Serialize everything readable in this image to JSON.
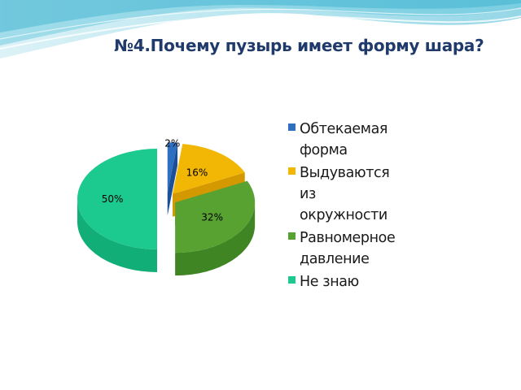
{
  "slide": {
    "title": "№4.Почему пузырь имеет форму шара?"
  },
  "chart_data": {
    "type": "pie",
    "three_d": true,
    "exploded": true,
    "title": "№4.Почему пузырь имеет форму шара?",
    "legend_position": "right",
    "categories": [
      "Обтекаемая форма",
      "Выдуваются из окружности",
      "Равномерное давление",
      "Не знаю"
    ],
    "values": [
      2,
      16,
      32,
      50
    ],
    "data_labels": [
      "2%",
      "16%",
      "32%",
      "50%"
    ],
    "legend_lines": [
      [
        "Обтекаемая",
        "форма"
      ],
      [
        "Выдуваются",
        "из",
        "окружности"
      ],
      [
        "Равномерное",
        "давление"
      ],
      [
        "Не знаю"
      ]
    ],
    "colors": [
      "#2f6fc0",
      "#f2b705",
      "#58a232",
      "#1cc98e"
    ],
    "side_colors": [
      "#1c4f96",
      "#d49800",
      "#3f8523",
      "#12ae78"
    ]
  }
}
